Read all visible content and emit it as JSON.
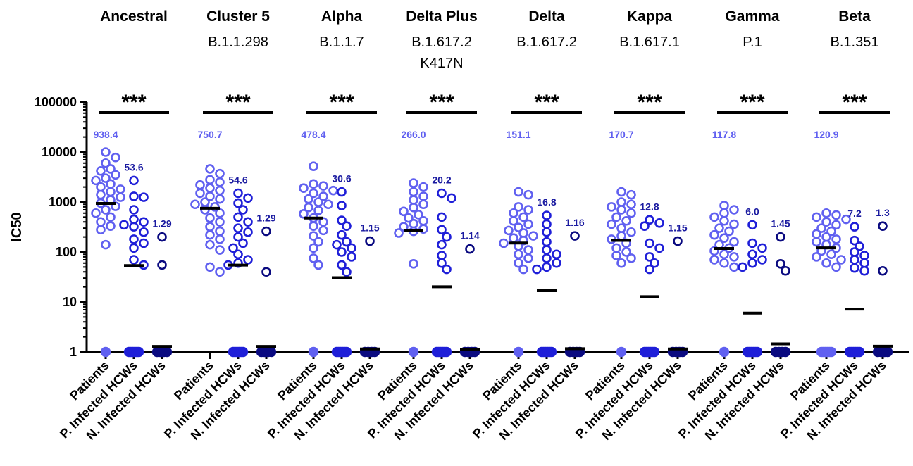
{
  "chart_data": {
    "type": "scatter",
    "scale": "log",
    "ylabel": "IC50",
    "ylim": [
      1,
      100000
    ],
    "yticks": [
      {
        "value": 1,
        "label": "1"
      },
      {
        "value": 10,
        "label": "10"
      },
      {
        "value": 100,
        "label": "100"
      },
      {
        "value": 1000,
        "label": "1000"
      },
      {
        "value": 10000,
        "label": "10000"
      },
      {
        "value": 100000,
        "label": "100000"
      }
    ],
    "group_labels": [
      "Patients",
      "P. Infected HCWs",
      "N. Infected HCWs"
    ],
    "group_colors": [
      "#6060f0",
      "#1f1fd8",
      "#0a0a80"
    ],
    "significance_label": "***",
    "variants": [
      {
        "title": "Ancestral",
        "lineage": [],
        "groups": [
          {
            "gm": 938.4,
            "gm_label": "938.4",
            "floor_count": 1,
            "values": [
              10000,
              7800,
              6000,
              4600,
              4200,
              3500,
              3000,
              2700,
              2300,
              2000,
              1800,
              1600,
              1400,
              1250,
              1100,
              950,
              820,
              700,
              600,
              500,
              400,
              330,
              280,
              140
            ]
          },
          {
            "gm": 53.6,
            "gm_label": "53.6",
            "floor_count": 6,
            "values": [
              2700,
              1300,
              1250,
              700,
              450,
              400,
              350,
              320,
              250,
              180,
              150,
              120,
              70,
              55
            ]
          },
          {
            "gm": 1.29,
            "gm_label": "1.29",
            "floor_count": 4,
            "values": [
              200,
              55
            ]
          }
        ]
      },
      {
        "title": "Cluster 5",
        "lineage": [
          "B.1.1.298"
        ],
        "groups": [
          {
            "gm": 750.7,
            "gm_label": "750.7",
            "floor_count": 0,
            "values": [
              4600,
              3700,
              2800,
              2500,
              2200,
              1900,
              1700,
              1500,
              1300,
              1150,
              1000,
              900,
              800,
              700,
              600,
              480,
              400,
              320,
              260,
              220,
              180,
              140,
              110,
              50,
              40
            ]
          },
          {
            "gm": 54.6,
            "gm_label": "54.6",
            "floor_count": 6,
            "values": [
              1500,
              1200,
              950,
              700,
              500,
              400,
              300,
              250,
              200,
              150,
              120,
              90,
              70,
              60,
              55
            ]
          },
          {
            "gm": 1.29,
            "gm_label": "1.29",
            "floor_count": 4,
            "values": [
              260,
              40
            ]
          }
        ]
      },
      {
        "title": "Alpha",
        "lineage": [
          "B.1.1.7"
        ],
        "groups": [
          {
            "gm": 478.4,
            "gm_label": "478.4",
            "floor_count": 1,
            "values": [
              5200,
              2300,
              2100,
              1900,
              1700,
              1500,
              1300,
              1150,
              1000,
              900,
              780,
              680,
              580,
              480,
              400,
              330,
              270,
              210,
              160,
              120,
              75,
              55
            ]
          },
          {
            "gm": 30.6,
            "gm_label": "30.6",
            "floor_count": 6,
            "values": [
              1600,
              850,
              430,
              330,
              220,
              160,
              140,
              120,
              100,
              80,
              55,
              40
            ]
          },
          {
            "gm": 1.15,
            "gm_label": "1.15",
            "floor_count": 4,
            "values": [
              165
            ]
          }
        ]
      },
      {
        "title": "Delta  Plus",
        "lineage": [
          "B.1.617.2",
          "K417N"
        ],
        "groups": [
          {
            "gm": 266.0,
            "gm_label": "266.0",
            "floor_count": 1,
            "values": [
              2400,
              2000,
              1600,
              1300,
              1100,
              900,
              780,
              650,
              560,
              480,
              420,
              370,
              320,
              290,
              260,
              240,
              58
            ]
          },
          {
            "gm": 20.2,
            "gm_label": "20.2",
            "floor_count": 6,
            "values": [
              1500,
              1200,
              500,
              280,
              200,
              140,
              85,
              60,
              45
            ]
          },
          {
            "gm": 1.14,
            "gm_label": "1.14",
            "floor_count": 4,
            "values": [
              115
            ]
          }
        ]
      },
      {
        "title": "Delta",
        "lineage": [
          "B.1.617.2"
        ],
        "groups": [
          {
            "gm": 151.1,
            "gm_label": "151.1",
            "floor_count": 1,
            "values": [
              1600,
              1400,
              800,
              700,
              600,
              500,
              420,
              360,
              310,
              270,
              240,
              210,
              190,
              170,
              150,
              130,
              110,
              90,
              75,
              60,
              45
            ]
          },
          {
            "gm": 16.8,
            "gm_label": "16.8",
            "floor_count": 6,
            "values": [
              540,
              360,
              250,
              160,
              110,
              90,
              75,
              60,
              50,
              45
            ]
          },
          {
            "gm": 1.16,
            "gm_label": "1.16",
            "floor_count": 4,
            "values": [
              210
            ]
          }
        ]
      },
      {
        "title": "Kappa",
        "lineage": [
          "B.1.617.1"
        ],
        "groups": [
          {
            "gm": 170.7,
            "gm_label": "170.7",
            "floor_count": 1,
            "values": [
              1600,
              1400,
              1000,
              900,
              800,
              700,
              600,
              500,
              420,
              360,
              300,
              250,
              210,
              180,
              150,
              120,
              100,
              85,
              75,
              60
            ]
          },
          {
            "gm": 12.8,
            "gm_label": "12.8",
            "floor_count": 6,
            "values": [
              440,
              380,
              330,
              150,
              120,
              80,
              60,
              45
            ]
          },
          {
            "gm": 1.15,
            "gm_label": "1.15",
            "floor_count": 4,
            "values": [
              165
            ]
          }
        ]
      },
      {
        "title": "Gamma",
        "lineage": [
          "P.1"
        ],
        "groups": [
          {
            "gm": 117.8,
            "gm_label": "117.8",
            "floor_count": 1,
            "values": [
              850,
              700,
              600,
              500,
              420,
              360,
              300,
              260,
              220,
              190,
              160,
              140,
              120,
              105,
              90,
              80,
              70,
              60,
              50
            ]
          },
          {
            "gm": 6.0,
            "gm_label": "6.0",
            "floor_count": 6,
            "values": [
              350,
              150,
              120,
              90,
              70,
              60,
              50
            ]
          },
          {
            "gm": 1.45,
            "gm_label": "1.45",
            "floor_count": 4,
            "values": [
              200,
              58,
              42
            ]
          }
        ]
      },
      {
        "title": "Beta",
        "lineage": [
          "B.1.351"
        ],
        "groups": [
          {
            "gm": 120.9,
            "gm_label": "120.9",
            "floor_count": 6,
            "values": [
              600,
              550,
              500,
              450,
              400,
              350,
              300,
              260,
              230,
              200,
              180,
              160,
              140,
              120,
              105,
              90,
              80,
              70,
              60,
              50
            ]
          },
          {
            "gm": 7.2,
            "gm_label": "7.2",
            "floor_count": 6,
            "values": [
              320,
              170,
              130,
              100,
              85,
              70,
              60,
              48,
              42
            ]
          },
          {
            "gm": 1.3,
            "gm_label": "1.3",
            "floor_count": 4,
            "values": [
              330,
              42
            ]
          }
        ]
      }
    ]
  }
}
